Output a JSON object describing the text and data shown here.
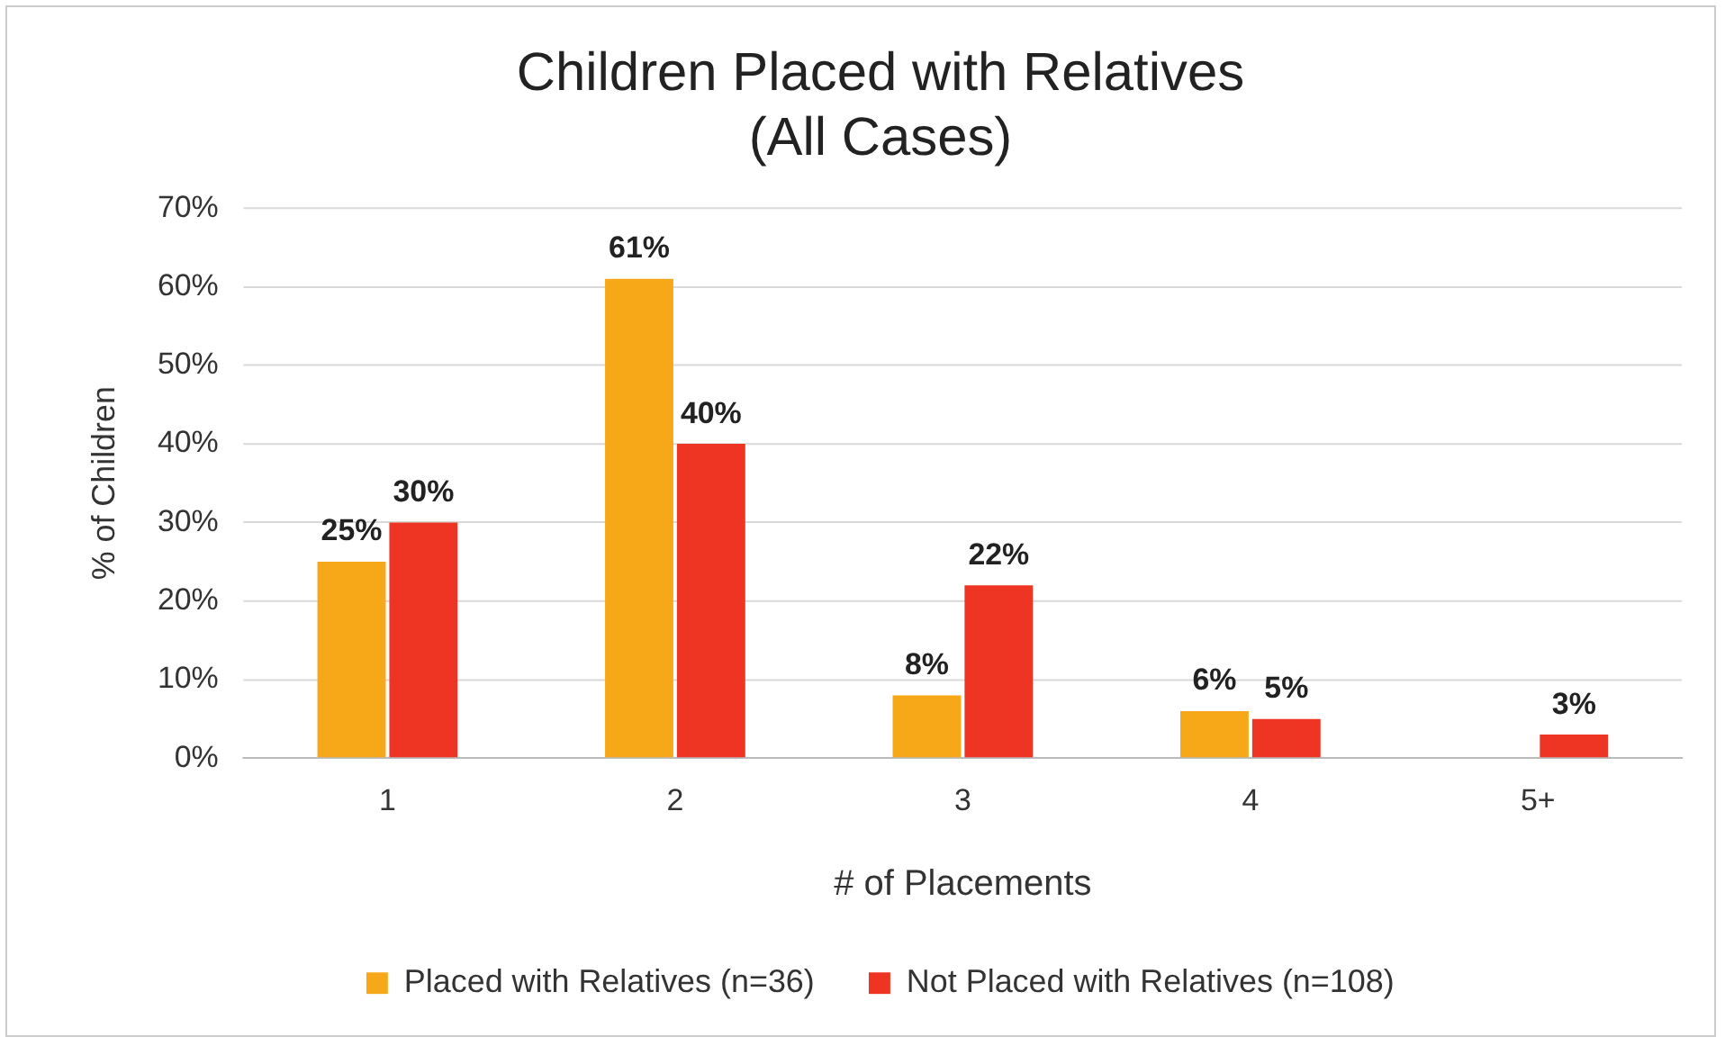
{
  "chart_data": {
    "type": "bar",
    "title": "Children Placed with Relatives\n(All Cases)",
    "xlabel": "# of Placements",
    "ylabel": "% of Children",
    "categories": [
      "1",
      "2",
      "3",
      "4",
      "5+"
    ],
    "series": [
      {
        "name": "Placed with Relatives (n=36)",
        "color": "#f7a818",
        "values": [
          25,
          61,
          8,
          6,
          null
        ],
        "value_labels": [
          "25%",
          "61%",
          "8%",
          "6%",
          null
        ]
      },
      {
        "name": "Not Placed with Relatives (n=108)",
        "color": "#ee3524",
        "values": [
          30,
          40,
          22,
          5,
          3
        ],
        "value_labels": [
          "30%",
          "40%",
          "22%",
          "5%",
          "3%"
        ]
      }
    ],
    "ylim": [
      0,
      70
    ],
    "yticks": [
      {
        "value": 0,
        "label": "0%"
      },
      {
        "value": 10,
        "label": "10%"
      },
      {
        "value": 20,
        "label": "20%"
      },
      {
        "value": 30,
        "label": "30%"
      },
      {
        "value": 40,
        "label": "40%"
      },
      {
        "value": 50,
        "label": "50%"
      },
      {
        "value": 60,
        "label": "60%"
      },
      {
        "value": 70,
        "label": "70%"
      }
    ],
    "grid": "y",
    "legend": "bottom"
  }
}
